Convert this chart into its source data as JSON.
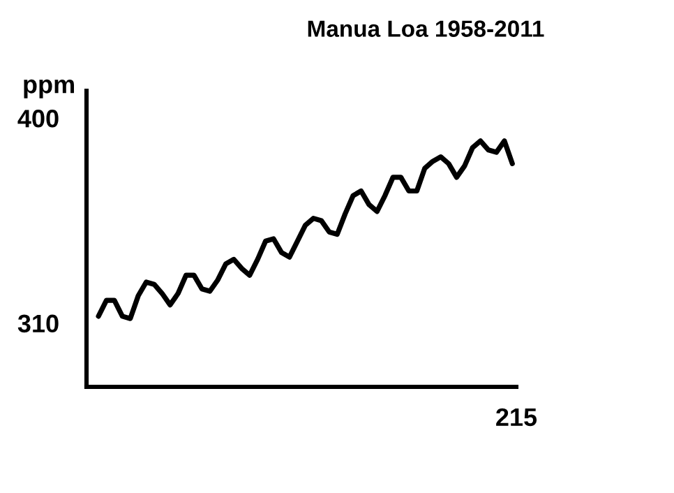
{
  "chart_data": {
    "type": "line",
    "title": "Manua Loa 1958-2011",
    "ylabel": "ppm",
    "categories": [
      null,
      null,
      null,
      null,
      null,
      null,
      null,
      null,
      null,
      null,
      null,
      null,
      null,
      null,
      null,
      null,
      null,
      null,
      null,
      null,
      null,
      null,
      null,
      null,
      null,
      null,
      null,
      null,
      null,
      null,
      null,
      null,
      null,
      null,
      null,
      null,
      null,
      null,
      null,
      null,
      null,
      null,
      null,
      null,
      null,
      null,
      null,
      null,
      null,
      null,
      null,
      null,
      null
    ],
    "values": [
      313,
      320,
      320,
      313,
      312,
      322,
      328,
      327,
      323,
      318,
      323,
      331,
      331,
      325,
      324,
      329,
      336,
      338,
      334,
      331,
      338,
      346,
      347,
      341,
      339,
      346,
      353,
      356,
      355,
      350,
      349,
      358,
      366,
      368,
      362,
      359,
      366,
      374,
      374,
      368,
      368,
      378,
      381,
      383,
      380,
      374,
      379,
      387,
      390,
      386,
      385,
      390,
      380
    ],
    "color": "#000000",
    "ylim": [
      282,
      412
    ],
    "yticks": [
      310,
      400
    ],
    "annotations": [
      "215"
    ],
    "grid": false,
    "marker": "none",
    "line_style": "solid"
  }
}
